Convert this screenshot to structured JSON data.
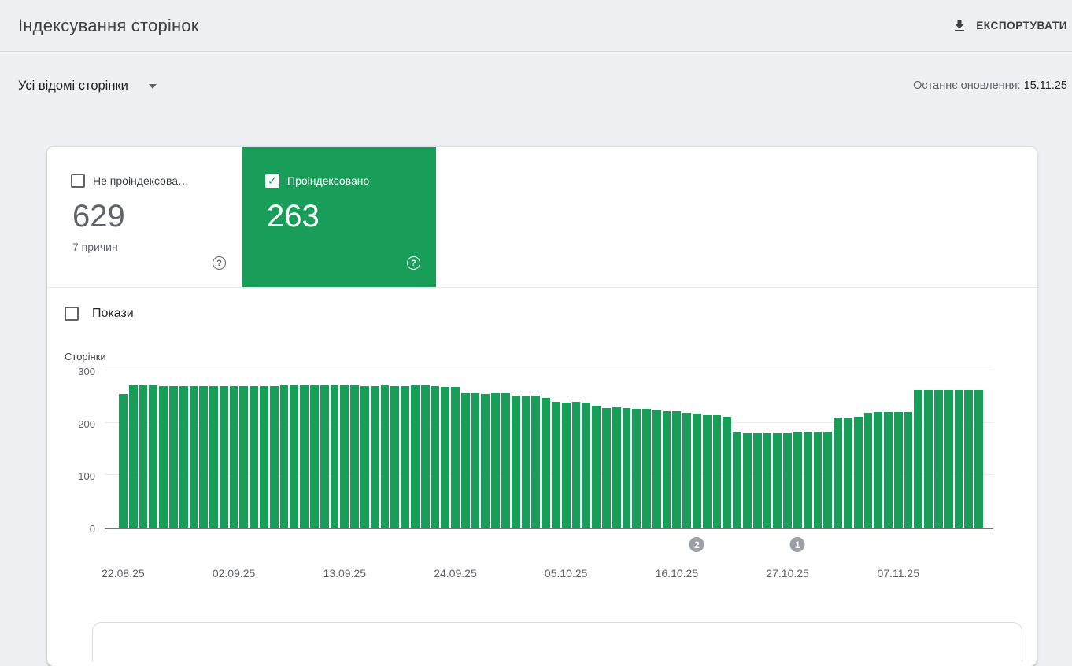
{
  "header": {
    "title": "Індексування сторінок",
    "export_label": "ЕКСПОРТУВАТИ"
  },
  "filter": {
    "page_filter": "Усі відомі сторінки",
    "last_updated_label": "Останнє оновлення:",
    "last_updated_value": "15.11.25"
  },
  "tiles": {
    "not_indexed": {
      "label": "Не проіндексова…",
      "value": "629",
      "sub": "7 причин",
      "checked": false
    },
    "indexed": {
      "label": "Проіндексовано",
      "value": "263",
      "checked": true
    }
  },
  "impressions_toggle": {
    "label": "Покази",
    "checked": false
  },
  "colors": {
    "green": "#189e58",
    "annotation_gray": "#9aa0a6"
  },
  "chart_data": {
    "type": "bar",
    "title": "",
    "ylabel": "Сторінки",
    "xlabel": "",
    "ylim": [
      0,
      300
    ],
    "yticks": [
      0,
      100,
      200,
      300
    ],
    "grid": "horizontal",
    "bar_color": "#189e58",
    "x_ticks": [
      {
        "index": 0,
        "label": "22.08.25"
      },
      {
        "index": 11,
        "label": "02.09.25"
      },
      {
        "index": 22,
        "label": "13.09.25"
      },
      {
        "index": 33,
        "label": "24.09.25"
      },
      {
        "index": 44,
        "label": "05.10.25"
      },
      {
        "index": 55,
        "label": "16.10.25"
      },
      {
        "index": 66,
        "label": "27.10.25"
      },
      {
        "index": 77,
        "label": "07.11.25"
      }
    ],
    "annotations": [
      {
        "index": 57,
        "label": "2"
      },
      {
        "index": 67,
        "label": "1"
      }
    ],
    "values": [
      255,
      273,
      273,
      272,
      270,
      270,
      270,
      270,
      270,
      270,
      270,
      270,
      270,
      270,
      270,
      270,
      271,
      272,
      272,
      272,
      271,
      271,
      272,
      271,
      270,
      270,
      271,
      270,
      270,
      271,
      271,
      270,
      269,
      268,
      257,
      256,
      255,
      256,
      257,
      252,
      251,
      252,
      248,
      240,
      238,
      240,
      238,
      232,
      228,
      230,
      228,
      226,
      227,
      225,
      222,
      222,
      219,
      217,
      215,
      214,
      212,
      181,
      180,
      180,
      180,
      180,
      180,
      181,
      182,
      183,
      183,
      210,
      210,
      212,
      219,
      220,
      220,
      220,
      221,
      262,
      262,
      262,
      262,
      263,
      263,
      263
    ]
  }
}
